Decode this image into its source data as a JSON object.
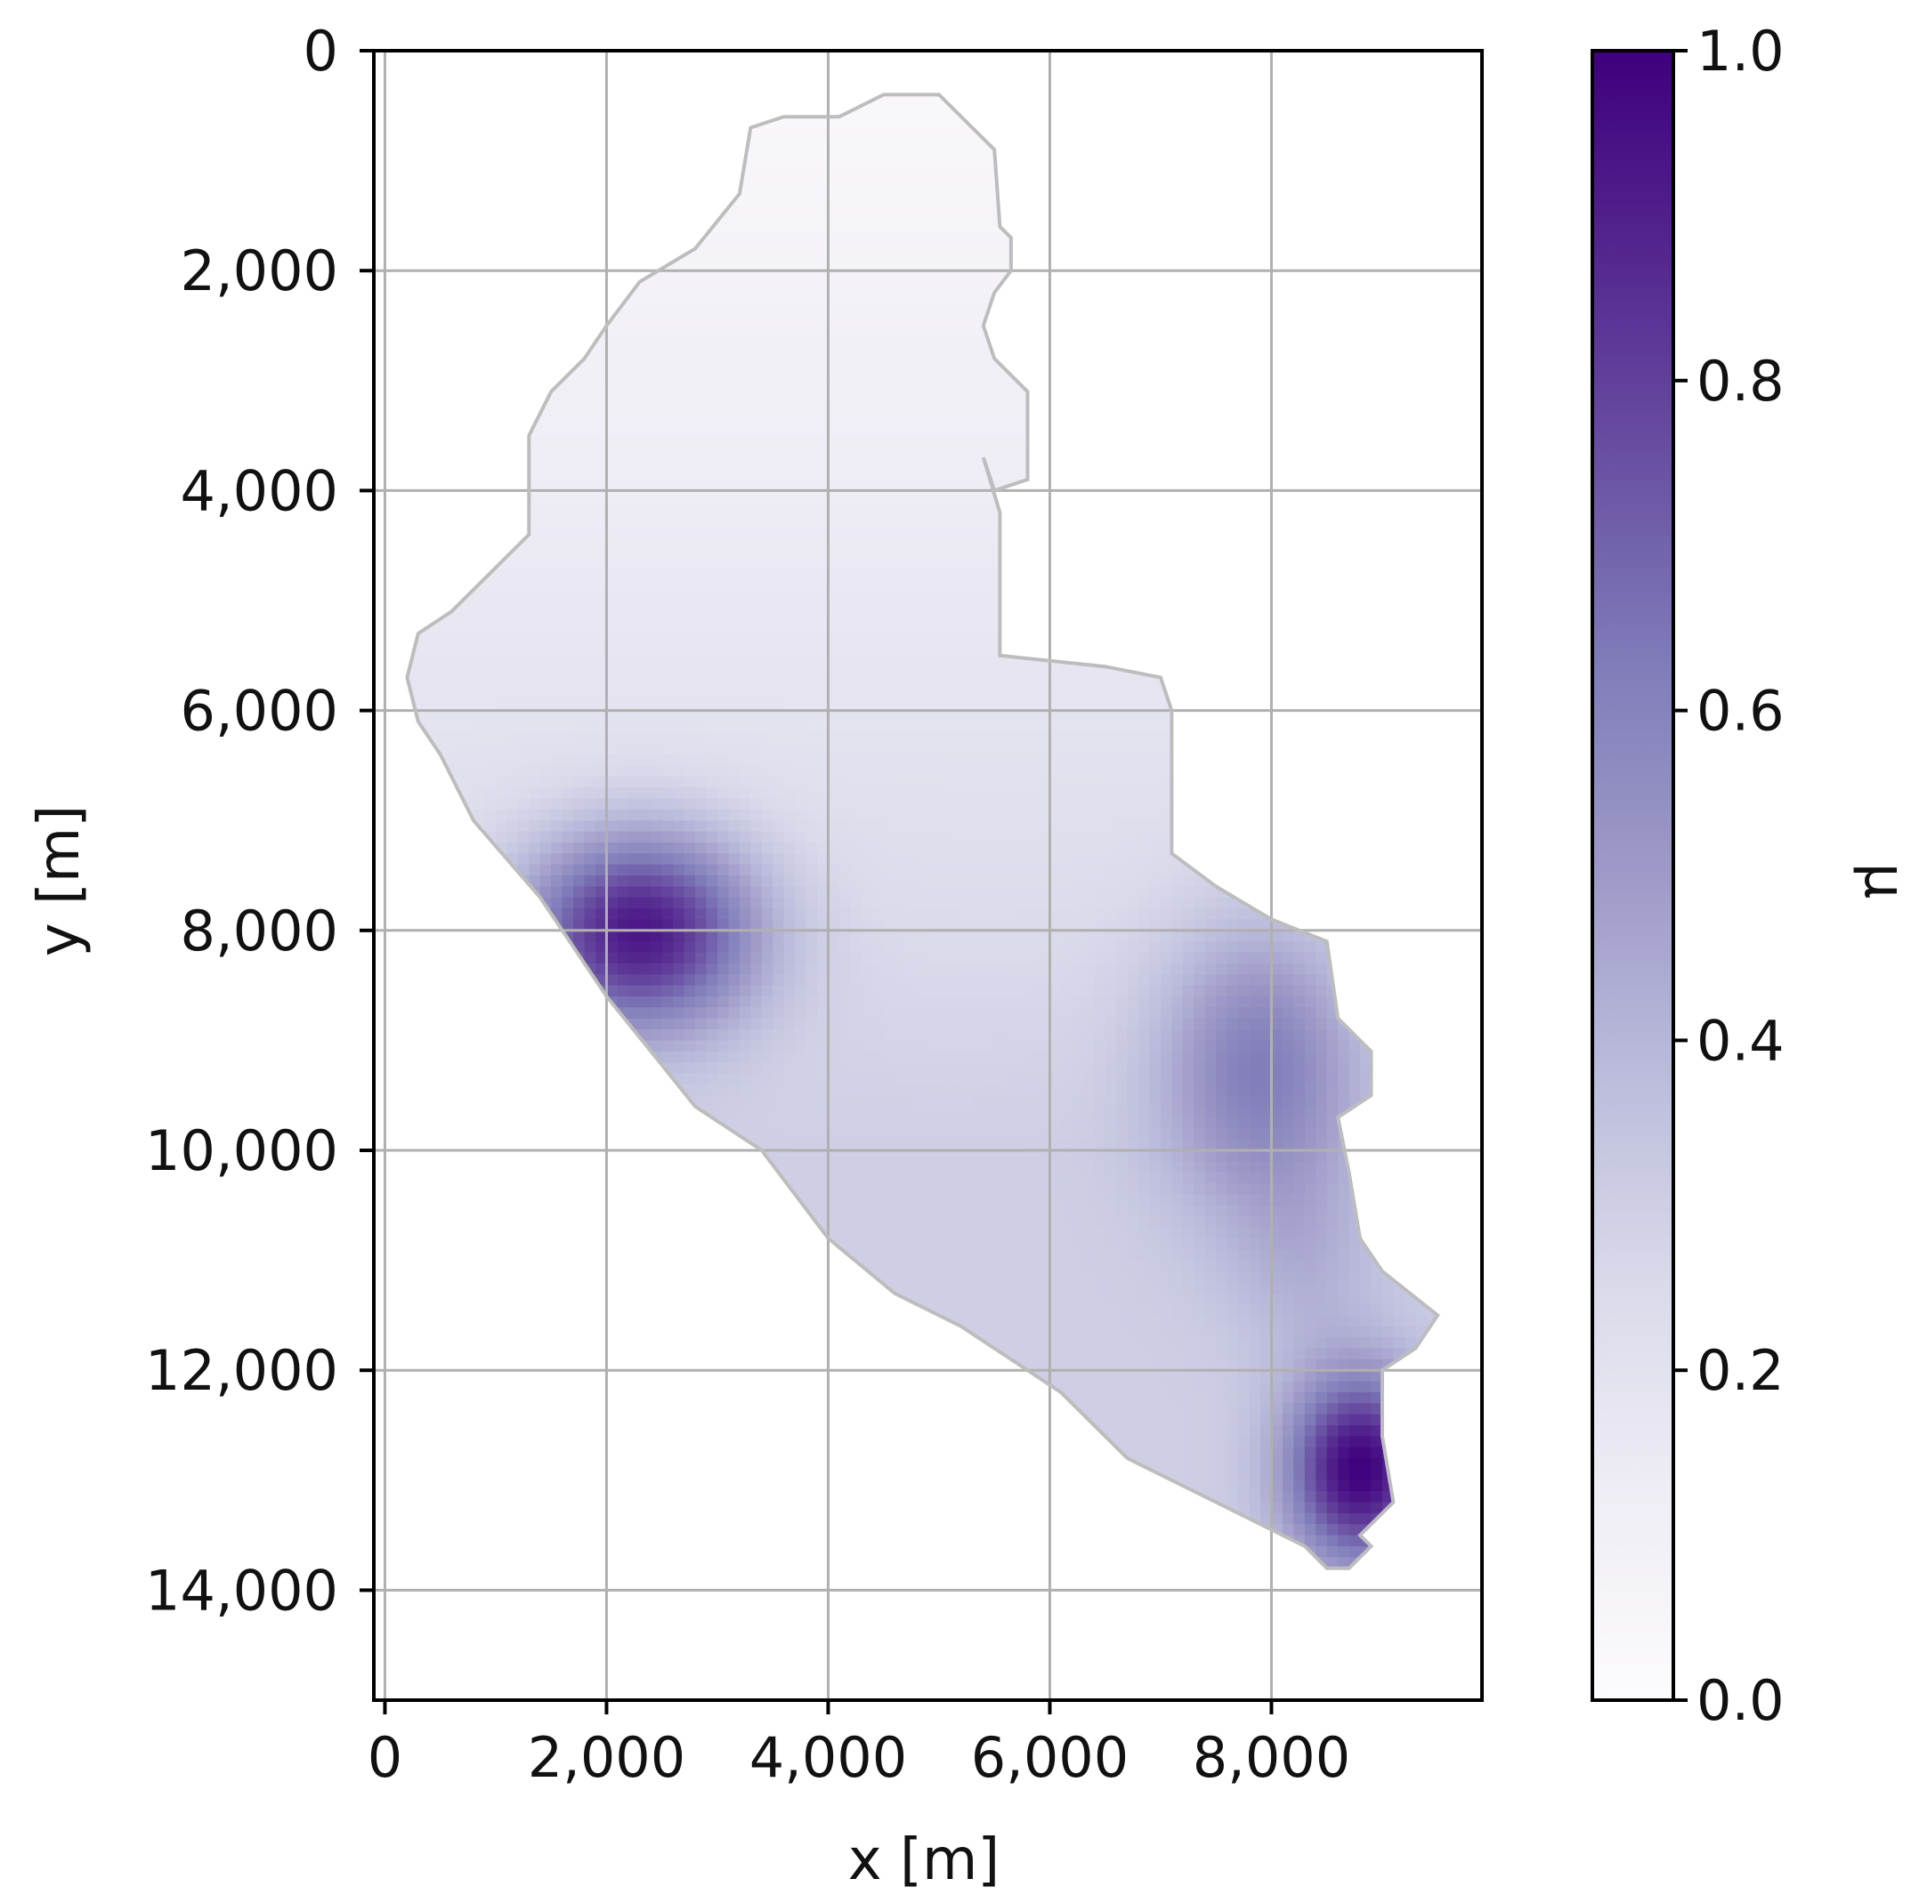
{
  "chart_data": {
    "type": "heatmap",
    "title": "",
    "xlabel": "x [m]",
    "ylabel": "y [m]",
    "colorbar_label": "μ",
    "colormap": "Purples",
    "color_low": "#fcfbfd",
    "color_high": "#3f007d",
    "xlim": [
      -100,
      9900
    ],
    "ylim": [
      15000,
      0
    ],
    "y_inverted": true,
    "grid": true,
    "xticks": [
      0,
      2000,
      4000,
      6000,
      8000
    ],
    "xtick_labels": [
      "0",
      "2,000",
      "4,000",
      "6,000",
      "8,000"
    ],
    "yticks": [
      0,
      2000,
      4000,
      6000,
      8000,
      10000,
      12000,
      14000
    ],
    "ytick_labels": [
      "0",
      "2,000",
      "4,000",
      "6,000",
      "8,000",
      "10,000",
      "12,000",
      "14,000"
    ],
    "colorbar_range": [
      0.0,
      1.0
    ],
    "colorbar_ticks": [
      0.0,
      0.2,
      0.4,
      0.6,
      0.8,
      1.0
    ],
    "colorbar_tick_labels": [
      "0.0",
      "0.2",
      "0.4",
      "0.6",
      "0.8",
      "1.0"
    ],
    "region_outline": [
      [
        4500,
        400
      ],
      [
        5000,
        400
      ],
      [
        5300,
        700
      ],
      [
        5500,
        900
      ],
      [
        5550,
        1600
      ],
      [
        5650,
        1700
      ],
      [
        5650,
        2000
      ],
      [
        5500,
        2200
      ],
      [
        5400,
        2500
      ],
      [
        5500,
        2800
      ],
      [
        5800,
        3100
      ],
      [
        5800,
        3900
      ],
      [
        5500,
        4000
      ],
      [
        5400,
        3700
      ],
      [
        5550,
        4200
      ],
      [
        5550,
        5500
      ],
      [
        6500,
        5600
      ],
      [
        7000,
        5700
      ],
      [
        7100,
        6000
      ],
      [
        7100,
        7300
      ],
      [
        7500,
        7600
      ],
      [
        8000,
        7900
      ],
      [
        8500,
        8100
      ],
      [
        8600,
        8800
      ],
      [
        8900,
        9100
      ],
      [
        8900,
        9500
      ],
      [
        8600,
        9700
      ],
      [
        8700,
        10200
      ],
      [
        8800,
        10800
      ],
      [
        9000,
        11100
      ],
      [
        9500,
        11500
      ],
      [
        9300,
        11800
      ],
      [
        9000,
        12000
      ],
      [
        9000,
        12600
      ],
      [
        9100,
        13200
      ],
      [
        8800,
        13500
      ],
      [
        8900,
        13600
      ],
      [
        8700,
        13800
      ],
      [
        8500,
        13800
      ],
      [
        8300,
        13600
      ],
      [
        7500,
        13200
      ],
      [
        6700,
        12800
      ],
      [
        6100,
        12200
      ],
      [
        5800,
        12000
      ],
      [
        5200,
        11600
      ],
      [
        4600,
        11300
      ],
      [
        4000,
        10800
      ],
      [
        3400,
        10000
      ],
      [
        2800,
        9600
      ],
      [
        2400,
        9100
      ],
      [
        2000,
        8600
      ],
      [
        1400,
        7700
      ],
      [
        800,
        7000
      ],
      [
        500,
        6400
      ],
      [
        300,
        6100
      ],
      [
        200,
        5700
      ],
      [
        300,
        5300
      ],
      [
        600,
        5100
      ],
      [
        1000,
        4700
      ],
      [
        1300,
        4400
      ],
      [
        1300,
        3500
      ],
      [
        1500,
        3100
      ],
      [
        1800,
        2800
      ],
      [
        2000,
        2500
      ],
      [
        2300,
        2100
      ],
      [
        2800,
        1800
      ],
      [
        3200,
        1300
      ],
      [
        3300,
        700
      ],
      [
        3600,
        600
      ],
      [
        4100,
        600
      ]
    ],
    "field_peaks": [
      {
        "x": 2300,
        "y": 8000,
        "value": 0.95
      },
      {
        "x": 8800,
        "y": 12900,
        "value": 1.0
      },
      {
        "x": 7900,
        "y": 9200,
        "value": 0.62
      },
      {
        "x": 4500,
        "y": 9600,
        "value": 0.33
      }
    ],
    "field_baseline": "0.02 at y=0 increasing to 0.30 at y=10000"
  }
}
